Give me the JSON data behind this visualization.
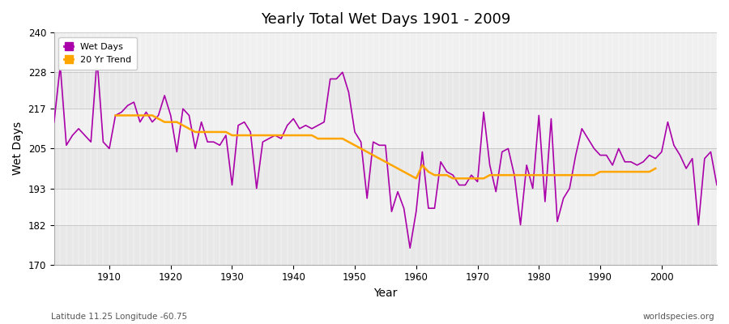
{
  "title": "Yearly Total Wet Days 1901 - 2009",
  "xlabel": "Year",
  "ylabel": "Wet Days",
  "bottom_left_label": "Latitude 11.25 Longitude -60.75",
  "bottom_right_label": "worldspecies.org",
  "ylim": [
    170,
    240
  ],
  "yticks": [
    170,
    182,
    193,
    205,
    217,
    228,
    240
  ],
  "xlim": [
    1901,
    2009
  ],
  "plot_bg_color": "#f0f0f0",
  "fig_bg_color": "#ffffff",
  "line_color": "#aa00aa",
  "trend_color": "#FFA500",
  "legend_wet": "Wet Days",
  "legend_trend": "20 Yr Trend",
  "wet_days": [
    213,
    230,
    206,
    209,
    211,
    209,
    207,
    232,
    207,
    205,
    215,
    216,
    218,
    219,
    213,
    216,
    213,
    215,
    221,
    215,
    204,
    217,
    215,
    205,
    213,
    207,
    207,
    206,
    209,
    194,
    212,
    213,
    210,
    193,
    207,
    208,
    209,
    208,
    212,
    214,
    211,
    212,
    211,
    212,
    213,
    226,
    226,
    228,
    222,
    210,
    207,
    190,
    207,
    206,
    206,
    186,
    192,
    187,
    175,
    186,
    204,
    187,
    187,
    201,
    198,
    197,
    194,
    194,
    197,
    195,
    216,
    200,
    192,
    204,
    205,
    197,
    182,
    200,
    193,
    215,
    189,
    214,
    183,
    190,
    193,
    203,
    211,
    208,
    205,
    203,
    203,
    200,
    205,
    201,
    201,
    200,
    201,
    203,
    202,
    204,
    213,
    206,
    203,
    199,
    202,
    182,
    202,
    204,
    194
  ],
  "trend_years": [
    1911,
    1912,
    1913,
    1914,
    1915,
    1916,
    1917,
    1918,
    1919,
    1920,
    1921,
    1922,
    1923,
    1924,
    1925,
    1926,
    1927,
    1928,
    1929,
    1930,
    1931,
    1932,
    1933,
    1934,
    1935,
    1936,
    1937,
    1938,
    1939,
    1940,
    1941,
    1942,
    1943,
    1944,
    1945,
    1946,
    1947,
    1948,
    1949,
    1950,
    1951,
    1952,
    1953,
    1954,
    1955,
    1956,
    1957,
    1958,
    1959,
    1960,
    1961,
    1962,
    1963,
    1964,
    1965,
    1966,
    1967,
    1968,
    1969,
    1970,
    1971,
    1972,
    1973,
    1974,
    1975,
    1976,
    1977,
    1978,
    1979,
    1980,
    1981,
    1982,
    1983,
    1984,
    1985,
    1986,
    1987,
    1988,
    1989,
    1990,
    1991,
    1992,
    1993,
    1994,
    1995,
    1996,
    1997,
    1998,
    1999
  ],
  "trend_values": [
    215,
    215,
    215,
    215,
    215,
    215,
    215,
    214,
    213,
    213,
    213,
    212,
    211,
    210,
    210,
    210,
    210,
    210,
    210,
    209,
    209,
    209,
    209,
    209,
    209,
    209,
    209,
    209,
    209,
    209,
    209,
    209,
    209,
    208,
    208,
    208,
    208,
    208,
    207,
    206,
    205,
    204,
    203,
    202,
    201,
    200,
    199,
    198,
    197,
    196,
    200,
    198,
    197,
    197,
    197,
    196,
    196,
    196,
    196,
    196,
    196,
    197,
    197,
    197,
    197,
    197,
    197,
    197,
    197,
    197,
    197,
    197,
    197,
    197,
    197,
    197,
    197,
    197,
    197,
    198,
    198,
    198,
    198,
    198,
    198,
    198,
    198,
    198,
    199
  ]
}
